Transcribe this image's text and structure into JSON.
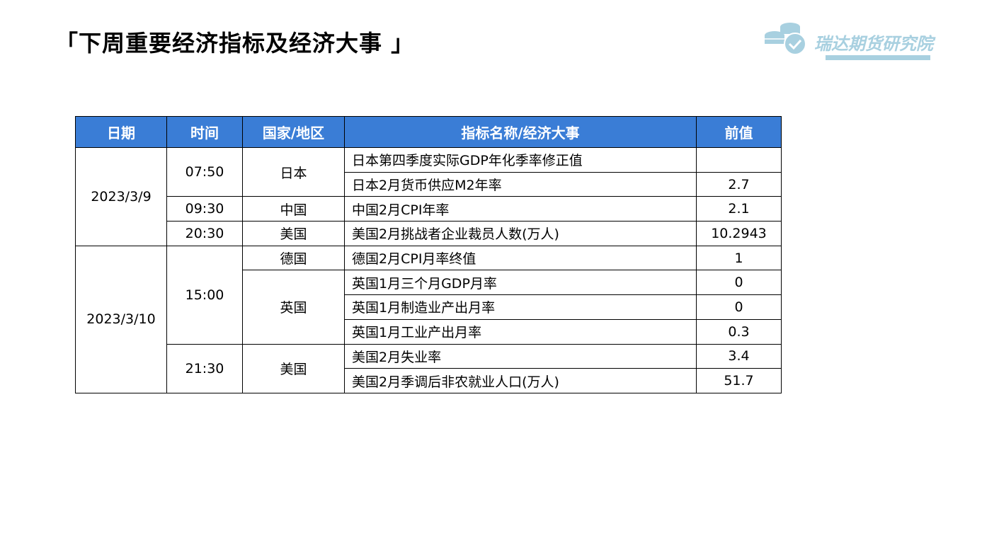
{
  "title": "「下周重要经济指标及经济大事 」",
  "logo": {
    "text": "瑞达期货研究院",
    "icon": "coins-check-icon",
    "color": "#a8d0e0"
  },
  "table": {
    "header_color": "#3a7dd6",
    "headers": [
      "日期",
      "时间",
      "国家/地区",
      "指标名称/经济大事",
      "前值"
    ],
    "dates": [
      "2023/3/9",
      "2023/3/10"
    ],
    "times": [
      "07:50",
      "09:30",
      "20:30",
      "15:00",
      "21:30"
    ],
    "countries": [
      "日本",
      "中国",
      "美国",
      "德国",
      "英国",
      "美国"
    ],
    "rows": [
      {
        "indicator": "日本第四季度实际GDP年化季率修正值",
        "prev": ""
      },
      {
        "indicator": "日本2月货币供应M2年率",
        "prev": "2.7"
      },
      {
        "indicator": "中国2月CPI年率",
        "prev": "2.1"
      },
      {
        "indicator": "美国2月挑战者企业裁员人数(万人)",
        "prev": "10.2943"
      },
      {
        "indicator": "德国2月CPI月率终值",
        "prev": "1"
      },
      {
        "indicator": "英国1月三个月GDP月率",
        "prev": "0"
      },
      {
        "indicator": "英国1月制造业产出月率",
        "prev": "0"
      },
      {
        "indicator": "英国1月工业产出月率",
        "prev": "0.3"
      },
      {
        "indicator": "美国2月失业率",
        "prev": "3.4"
      },
      {
        "indicator": "美国2月季调后非农就业人口(万人)",
        "prev": "51.7"
      }
    ]
  }
}
